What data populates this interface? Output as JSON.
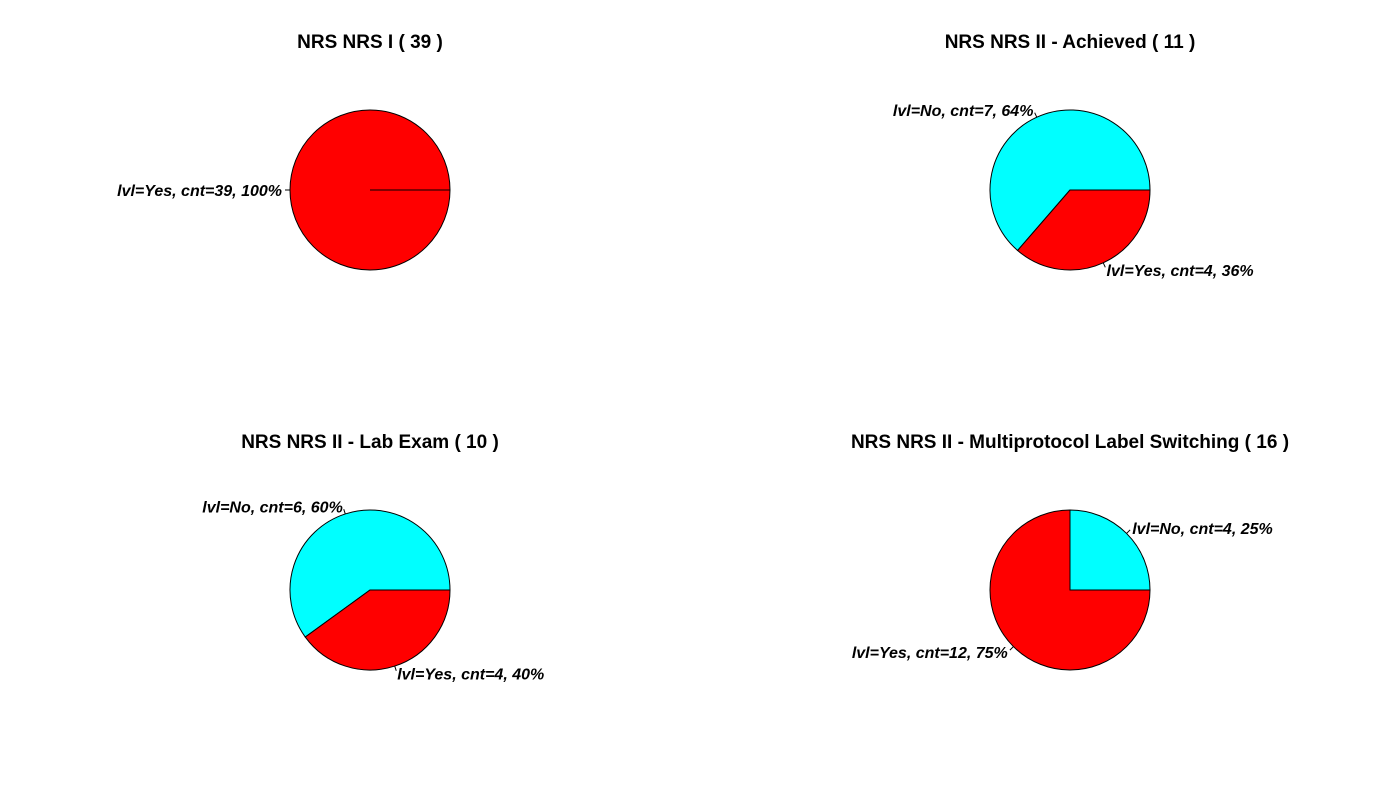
{
  "chart_data": [
    {
      "type": "pie",
      "title": "NRS NRS I ( 39 )",
      "slices": [
        {
          "name": "Yes",
          "value": 39,
          "label": "lvl=Yes, cnt=39, 100%",
          "color": "#ff0000"
        }
      ]
    },
    {
      "type": "pie",
      "title": "NRS NRS II - Achieved ( 11 )",
      "slices": [
        {
          "name": "No",
          "value": 7,
          "label": "lvl=No, cnt=7, 64%",
          "color": "#00ffff"
        },
        {
          "name": "Yes",
          "value": 4,
          "label": "lvl=Yes, cnt=4, 36%",
          "color": "#ff0000"
        }
      ]
    },
    {
      "type": "pie",
      "title": "NRS NRS II - Lab Exam ( 10 )",
      "slices": [
        {
          "name": "No",
          "value": 6,
          "label": "lvl=No, cnt=6, 60%",
          "color": "#00ffff"
        },
        {
          "name": "Yes",
          "value": 4,
          "label": "lvl=Yes, cnt=4, 40%",
          "color": "#ff0000"
        }
      ]
    },
    {
      "type": "pie",
      "title": "NRS NRS II - Multiprotocol Label Switching ( 16 )",
      "slices": [
        {
          "name": "No",
          "value": 4,
          "label": "lvl=No, cnt=4, 25%",
          "color": "#00ffff"
        },
        {
          "name": "Yes",
          "value": 12,
          "label": "lvl=Yes, cnt=12, 75%",
          "color": "#ff0000"
        }
      ]
    }
  ]
}
